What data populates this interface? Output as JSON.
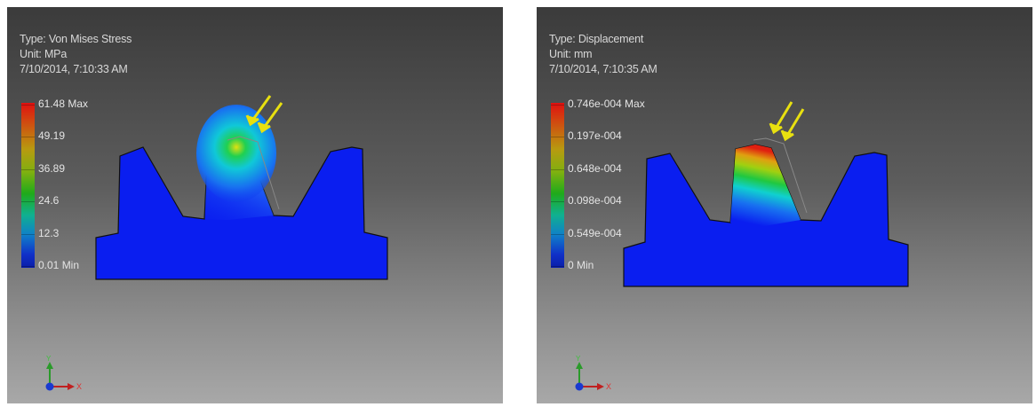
{
  "left_view": {
    "type_label": "Type: Von Mises Stress",
    "unit_label": "Unit: MPa",
    "timestamp": "7/10/2014, 7:10:33 AM",
    "legend": [
      "61.48 Max",
      "49.19",
      "36.89",
      "24.6",
      "12.3",
      "0.01 Min"
    ],
    "axis": {
      "y": "Y",
      "x": "X"
    }
  },
  "right_view": {
    "type_label": "Type: Displacement",
    "unit_label": "Unit: mm",
    "timestamp": "7/10/2014, 7:10:35 AM",
    "legend": [
      "0.746e-004 Max",
      "0.197e-004",
      "0.648e-004",
      "0.098e-004",
      "0.549e-004",
      "0 Min"
    ],
    "axis": {
      "y": "Y",
      "x": "X"
    }
  },
  "colors": {
    "gear_body": "#0a1ef0",
    "load_arrow": "#e8e010",
    "background_top": "#3b3b3b",
    "background_bottom": "#a8a8a8"
  },
  "icons": [
    "load-arrow-icon",
    "axis-triad-icon"
  ]
}
